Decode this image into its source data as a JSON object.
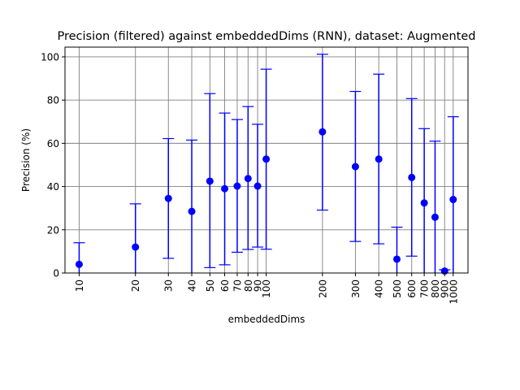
{
  "chart_data": {
    "type": "scatter",
    "title": "Precision (filtered) against embeddedDims (RNN), dataset: Augmented",
    "xlabel": "embeddedDims",
    "ylabel": "Precision (%)",
    "xscale": "log",
    "xlim": [
      8.4,
      1200
    ],
    "ylim": [
      0,
      104.5
    ],
    "grid": true,
    "x_ticks": [
      10,
      20,
      30,
      40,
      50,
      60,
      70,
      80,
      90,
      100,
      200,
      300,
      400,
      500,
      600,
      700,
      800,
      900,
      1000
    ],
    "x_tick_labels": [
      "10",
      "20",
      "30",
      "40",
      "50",
      "60",
      "70",
      "80",
      "90",
      "100",
      "200",
      "300",
      "400",
      "500",
      "600",
      "700",
      "800",
      "900",
      "1000"
    ],
    "y_ticks": [
      0,
      20,
      40,
      60,
      80,
      100
    ],
    "y_tick_labels": [
      "0",
      "20",
      "40",
      "60",
      "80",
      "100"
    ],
    "series": [
      {
        "color": "#0000ff",
        "marker": "circle",
        "points": [
          {
            "x": 10,
            "y": 4.0,
            "err_low": 0.0,
            "err_high": 14.0
          },
          {
            "x": 20,
            "y": 12.0,
            "err_low": 0.0,
            "err_high": 32.0
          },
          {
            "x": 30,
            "y": 34.5,
            "err_low": 6.8,
            "err_high": 62.2
          },
          {
            "x": 40,
            "y": 28.5,
            "err_low": 0.0,
            "err_high": 61.5
          },
          {
            "x": 50,
            "y": 42.5,
            "err_low": 2.5,
            "err_high": 83.0
          },
          {
            "x": 60,
            "y": 39.0,
            "err_low": 3.8,
            "err_high": 74.0
          },
          {
            "x": 70,
            "y": 40.2,
            "err_low": 9.6,
            "err_high": 71.0
          },
          {
            "x": 80,
            "y": 43.7,
            "err_low": 10.9,
            "err_high": 77.0
          },
          {
            "x": 90,
            "y": 40.2,
            "err_low": 12.0,
            "err_high": 68.8
          },
          {
            "x": 100,
            "y": 52.7,
            "err_low": 11.0,
            "err_high": 94.3
          },
          {
            "x": 200,
            "y": 65.3,
            "err_low": 29.1,
            "err_high": 101.2
          },
          {
            "x": 300,
            "y": 49.2,
            "err_low": 14.6,
            "err_high": 84.0
          },
          {
            "x": 400,
            "y": 52.7,
            "err_low": 13.5,
            "err_high": 92.0
          },
          {
            "x": 500,
            "y": 6.4,
            "err_low": 0.0,
            "err_high": 21.2
          },
          {
            "x": 600,
            "y": 44.2,
            "err_low": 7.8,
            "err_high": 80.7
          },
          {
            "x": 700,
            "y": 32.4,
            "err_low": 0.0,
            "err_high": 66.8
          },
          {
            "x": 800,
            "y": 25.8,
            "err_low": 0.0,
            "err_high": 61.0
          },
          {
            "x": 900,
            "y": 0.9,
            "err_low": 0.0,
            "err_high": 1.5
          },
          {
            "x": 1000,
            "y": 34.0,
            "err_low": 0.0,
            "err_high": 72.3
          }
        ]
      }
    ]
  }
}
